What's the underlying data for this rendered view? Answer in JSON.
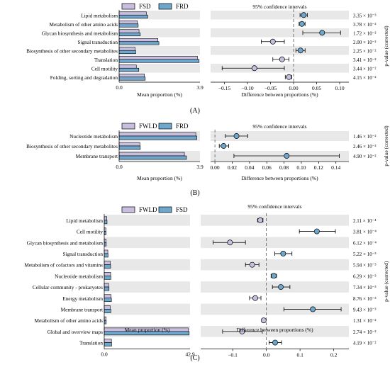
{
  "colors": {
    "group_a": "#c8bfe0",
    "group_b": "#6fa6cc",
    "band": "#e8e8e8",
    "border": "#000000"
  },
  "chart_data": [
    {
      "type": "bar",
      "panel_label": "(A)",
      "legend": [
        "FSD",
        "FRD"
      ],
      "categories": [
        "Lipid metabolism",
        "Metabolism of other amino acids",
        "Glycan biosynthesis and metabolism",
        "Signal transduction",
        "Biosynthesis of other secondary metabolites",
        "Translation",
        "Cell motility",
        "Folding, sorting and degradation"
      ],
      "series": [
        {
          "name": "FSD",
          "values": [
            1.32,
            0.88,
            0.96,
            1.87,
            0.77,
            3.78,
            0.83,
            1.22
          ]
        },
        {
          "name": "FRD",
          "values": [
            1.38,
            0.92,
            1.02,
            1.92,
            0.8,
            3.86,
            0.95,
            1.26
          ]
        }
      ],
      "bar_xlim": [
        0,
        3.9
      ],
      "bar_xticks": [
        "0.0",
        "3.9"
      ],
      "bar_xlabel": "Mean proportion (%)",
      "diff": [
        0.022,
        0.018,
        0.062,
        -0.045,
        0.015,
        -0.025,
        -0.085,
        -0.01
      ],
      "ci_low": [
        0.014,
        0.012,
        0.02,
        -0.07,
        0.005,
        -0.045,
        -0.155,
        -0.018
      ],
      "ci_high": [
        0.03,
        0.025,
        0.102,
        -0.02,
        0.025,
        -0.01,
        -0.02,
        -0.004
      ],
      "diff_xlim": [
        -0.18,
        0.12
      ],
      "diff_xticks": [
        -0.15,
        -0.1,
        -0.05,
        0.0,
        0.05,
        0.1
      ],
      "diff_xtick_labels": [
        "−0.15",
        "−0.10",
        "−0.05",
        "0.00",
        "0.05",
        "0.10"
      ],
      "ci_title": "95% confidence intervals",
      "diff_xlabel": "Difference between proportions (%)",
      "p_values": [
        "3.35 × 10⁻³",
        "3.78 × 10⁻²",
        "1.72 × 10⁻²",
        "2.00 × 10⁻²",
        "2.25 × 10⁻²",
        "3.41 × 10⁻²",
        "3.44 × 10⁻²",
        "4.15 × 10⁻²"
      ],
      "p_label": "p-value (corrected)"
    },
    {
      "type": "bar",
      "panel_label": "(B)",
      "legend": [
        "FWLD",
        "FRD"
      ],
      "categories": [
        "Nucleotide metabolism",
        "Biosynthesis of other secondary metabolites",
        "Membrane transport"
      ],
      "series": [
        {
          "name": "FWLD",
          "values": [
            3.7,
            1.0,
            3.15
          ]
        },
        {
          "name": "FRD",
          "values": [
            3.75,
            1.02,
            3.25
          ]
        }
      ],
      "bar_xlim": [
        0,
        3.9
      ],
      "bar_xticks": [
        "0.0",
        "3.9"
      ],
      "bar_xlabel": "Mean proportion (%)",
      "diff": [
        0.025,
        0.01,
        0.083
      ],
      "ci_low": [
        0.012,
        0.005,
        0.022
      ],
      "ci_high": [
        0.038,
        0.016,
        0.144
      ],
      "diff_xlim": [
        -0.005,
        0.155
      ],
      "diff_xticks": [
        0.0,
        0.02,
        0.04,
        0.06,
        0.08,
        0.1,
        0.12,
        0.14
      ],
      "diff_xtick_labels": [
        "0.00",
        "0.02",
        "0.04",
        "0.06",
        "0.08",
        "0.10",
        "0.12",
        "0.14"
      ],
      "ci_title": "95% confidence intervals",
      "diff_xlabel": "Difference between proportions (%)",
      "p_values": [
        "1.46 × 10⁻²",
        "2.46 × 10⁻²",
        "4.90 × 10⁻²"
      ],
      "p_label": "p-value (corrected)"
    },
    {
      "type": "bar",
      "panel_label": "(C)",
      "legend": [
        "FWLD",
        "FSD"
      ],
      "categories": [
        "Lipid metabolism",
        "Cell motility",
        "Glycan biosynthesis and metabolism",
        "Signal transduction",
        "Metabolism of cofactors and vitamins",
        "Nucleotide metabolism",
        "Cellular community - prokaryotes",
        "Energy metabolism",
        "Membrane transport",
        "Metabolism of other amino acids",
        "Global and overview maps",
        "Translation"
      ],
      "series": [
        {
          "name": "FWLD",
          "values": [
            1.3,
            0.8,
            0.9,
            1.8,
            3.0,
            3.2,
            2.2,
            3.4,
            3.0,
            0.9,
            42.0,
            3.6
          ]
        },
        {
          "name": "FSD",
          "values": [
            1.4,
            0.9,
            1.0,
            1.9,
            3.2,
            3.3,
            2.4,
            3.6,
            3.3,
            1.0,
            42.4,
            3.7
          ]
        }
      ],
      "bar_xlim": [
        0,
        42.9
      ],
      "bar_xticks": [
        "0.0",
        "42.9"
      ],
      "bar_xlabel": "Mean proportion (%)",
      "diff": [
        -0.018,
        0.15,
        -0.108,
        0.05,
        -0.042,
        0.022,
        0.043,
        -0.033,
        0.138,
        -0.008,
        -0.072,
        0.026
      ],
      "ci_low": [
        -0.026,
        0.098,
        -0.158,
        0.025,
        -0.062,
        0.014,
        0.018,
        -0.05,
        0.052,
        -0.012,
        -0.13,
        0.008
      ],
      "ci_high": [
        -0.01,
        0.205,
        -0.062,
        0.076,
        -0.022,
        0.03,
        0.07,
        -0.016,
        0.222,
        -0.003,
        -0.012,
        0.045
      ],
      "diff_xlim": [
        -0.195,
        0.245
      ],
      "diff_xticks": [
        -0.1,
        0.0,
        0.1,
        0.2
      ],
      "diff_xtick_labels": [
        "−0.1",
        "0.0",
        "0.1",
        "0.2"
      ],
      "ci_title": "95% confidence intervals",
      "diff_xlabel": "Difference between proportions (%)",
      "p_values": [
        "2.11 × 10⁻⁴",
        "3.81 × 10⁻⁴",
        "6.12 × 10⁻⁴",
        "5.22 × 10⁻³",
        "5.94 × 10⁻³",
        "6.29 × 10⁻³",
        "7.34 × 10⁻³",
        "8.76 × 10⁻³",
        "9.43 × 10⁻³",
        "1.31 × 10⁻²",
        "2.74 × 10⁻²",
        "4.19 × 10⁻²"
      ],
      "p_label": "p-value (corrected)"
    }
  ]
}
